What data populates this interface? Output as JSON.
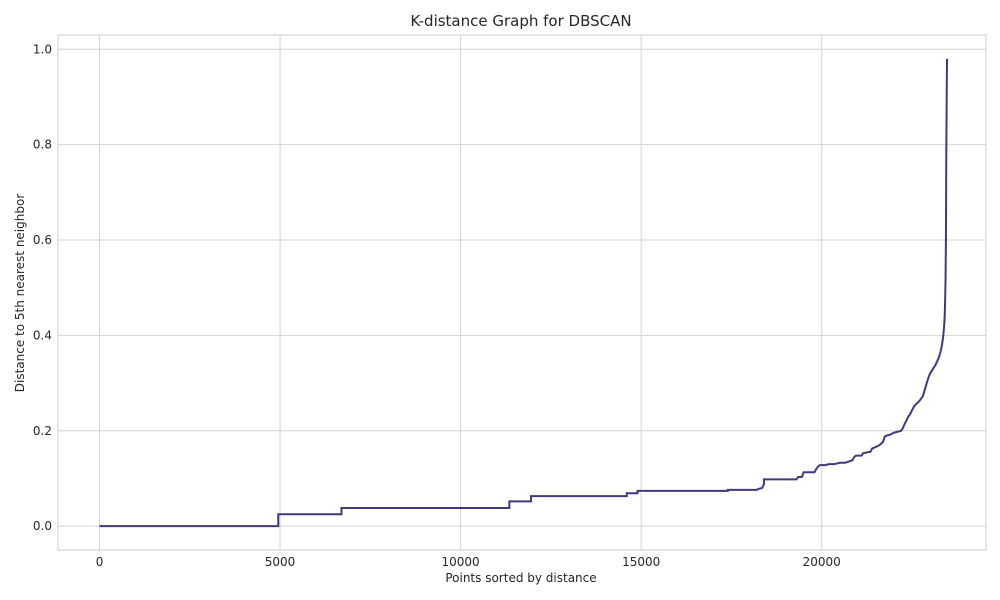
{
  "chart_data": {
    "type": "line",
    "title": "K-distance Graph for DBSCAN",
    "xlabel": "Points sorted by distance",
    "ylabel": "Distance to 5th nearest neighbor",
    "xlim": [
      -1150,
      24550
    ],
    "ylim": [
      -0.05,
      1.03
    ],
    "x_ticks": [
      0,
      5000,
      10000,
      15000,
      20000
    ],
    "x_tick_labels": [
      "0",
      "5000",
      "10000",
      "15000",
      "20000"
    ],
    "y_ticks": [
      0.0,
      0.2,
      0.4,
      0.6,
      0.8,
      1.0
    ],
    "y_tick_labels": [
      "0.0",
      "0.2",
      "0.4",
      "0.6",
      "0.8",
      "1.0"
    ],
    "grid": true,
    "line_color": "#3f3a7d",
    "series": [
      {
        "x": [
          0,
          4950,
          4950,
          6700,
          6700,
          11350,
          11350,
          11950,
          11950,
          14600,
          14600,
          14900,
          14900,
          17400,
          17400,
          18200,
          18250,
          18350,
          18400,
          18400,
          19300,
          19350,
          19450,
          19500,
          19800,
          19850,
          19900,
          19950,
          20100,
          20200,
          20350,
          20500,
          20650,
          20850,
          20900,
          20950,
          21100,
          21150,
          21350,
          21400,
          21500,
          21600,
          21700,
          21750,
          21800,
          21900,
          22000,
          22100,
          22200,
          22250,
          22300,
          22350,
          22400,
          22450,
          22500,
          22550,
          22600,
          22700,
          22800,
          22850,
          22900,
          22950,
          23000,
          23050,
          23100,
          23150,
          23200,
          23250,
          23300,
          23330,
          23360,
          23380,
          23400,
          23410,
          23420,
          23430,
          23440,
          23445,
          23450,
          23460,
          23470
        ],
        "y": [
          0.0,
          0.0,
          0.025,
          0.025,
          0.038,
          0.038,
          0.052,
          0.052,
          0.063,
          0.063,
          0.069,
          0.069,
          0.074,
          0.074,
          0.076,
          0.076,
          0.078,
          0.08,
          0.088,
          0.098,
          0.098,
          0.103,
          0.103,
          0.113,
          0.113,
          0.12,
          0.125,
          0.128,
          0.128,
          0.13,
          0.13,
          0.133,
          0.133,
          0.138,
          0.145,
          0.148,
          0.148,
          0.153,
          0.156,
          0.163,
          0.166,
          0.17,
          0.177,
          0.188,
          0.19,
          0.192,
          0.196,
          0.198,
          0.2,
          0.206,
          0.215,
          0.222,
          0.23,
          0.235,
          0.243,
          0.25,
          0.255,
          0.262,
          0.272,
          0.285,
          0.298,
          0.31,
          0.32,
          0.326,
          0.332,
          0.338,
          0.346,
          0.355,
          0.368,
          0.38,
          0.395,
          0.41,
          0.43,
          0.45,
          0.48,
          0.52,
          0.6,
          0.68,
          0.78,
          0.88,
          0.98
        ]
      }
    ]
  }
}
